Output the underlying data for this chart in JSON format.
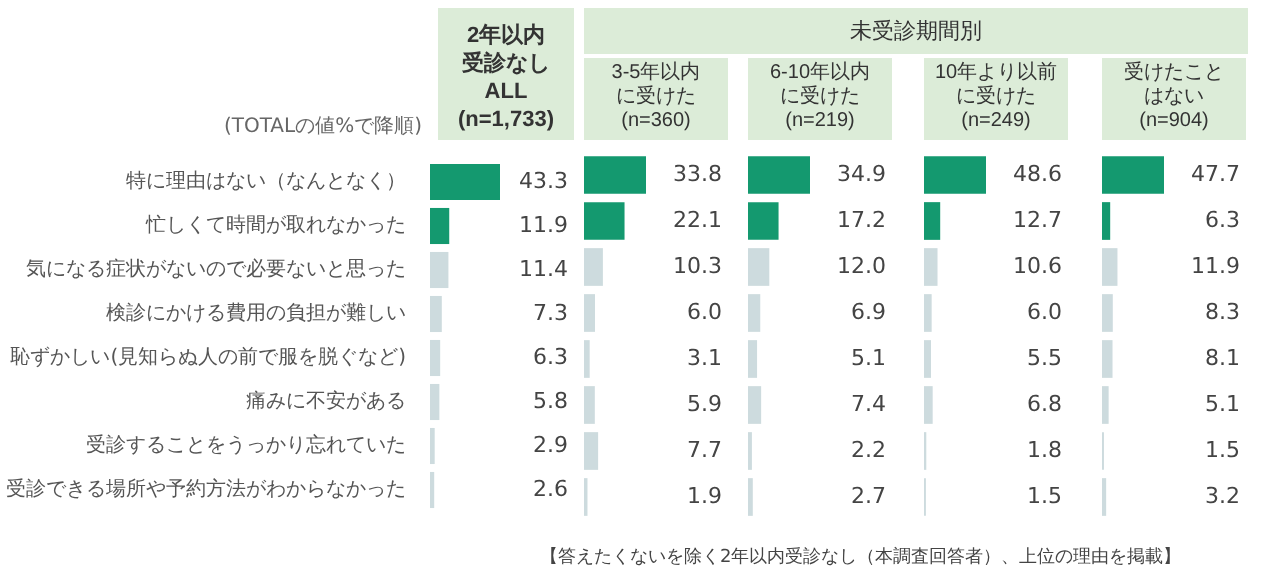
{
  "chart_data": [
    {
      "type": "bar",
      "orientation": "horizontal",
      "title": "2年以内受診なし\nALL\n(n=1,733)",
      "tick_labels": "y",
      "data_labels": true,
      "categories": [
        "特に理由はない（なんとなく）",
        "忙しくて時間が取れなかった",
        "気になる症状がないので必要ないと思った",
        "検診にかける費用の負担が難しい",
        "恥ずかしい(見知らぬ人の前で服を脱ぐなど)",
        "痛みに不安がある",
        "受診することをうっかり忘れていた",
        "受診できる場所や予約方法がわからなかった"
      ],
      "values": [
        43.3,
        11.9,
        11.4,
        7.3,
        6.3,
        5.8,
        2.9,
        2.6
      ],
      "colors": [
        "#14996f",
        "#14996f",
        "#cddbde",
        "#cddbde",
        "#cddbde",
        "#cddbde",
        "#cddbde",
        "#cddbde"
      ],
      "annotations": [
        "(TOTALの値%で降順)",
        "【答えたくないを除く2年以内受診なし（本調査回答者）、上位の理由を掲載】"
      ]
    },
    {
      "type": "bar",
      "orientation": "horizontal",
      "title": "3-5年以内に受けた\n(n=360)",
      "tick_labels": false,
      "categories": [
        null,
        null,
        null,
        null,
        null,
        null,
        null,
        null
      ],
      "values": [
        33.8,
        22.1,
        10.3,
        6.0,
        3.1,
        5.9,
        7.7,
        1.9
      ],
      "value_labels": [
        "33.8",
        "22.1",
        "10.3",
        "6.0",
        "3.1",
        "5.9",
        "7.7",
        "1.9"
      ],
      "colors": [
        "#14996f",
        "#14996f",
        "#cddbde",
        "#cddbde",
        "#cddbde",
        "#cddbde",
        "#cddbde",
        "#cddbde"
      ],
      "annotations": [
        "未受診期間別"
      ]
    },
    {
      "type": "bar",
      "orientation": "horizontal",
      "title": "6-10年以内に受けた\n(n=219)",
      "tick_labels": false,
      "categories": [
        null,
        null,
        null,
        null,
        null,
        null,
        null,
        null
      ],
      "values": [
        34.9,
        17.2,
        12.0,
        6.9,
        5.1,
        7.4,
        2.2,
        2.7
      ],
      "value_labels": [
        "34.9",
        "17.2",
        "12.0",
        "6.9",
        "5.1",
        "7.4",
        "2.2",
        "2.7"
      ],
      "colors": [
        "#14996f",
        "#14996f",
        "#cddbde",
        "#cddbde",
        "#cddbde",
        "#cddbde",
        "#cddbde",
        "#cddbde"
      ]
    },
    {
      "type": "bar",
      "orientation": "horizontal",
      "title": "10年より以前に受けた\n(n=249)",
      "tick_labels": false,
      "categories": [
        null,
        null,
        null,
        null,
        null,
        null,
        null,
        null
      ],
      "values": [
        48.6,
        12.7,
        10.6,
        6.0,
        5.5,
        6.8,
        1.8,
        1.5
      ],
      "value_labels": [
        "48.6",
        "12.7",
        "10.6",
        "6.0",
        "5.5",
        "6.8",
        "1.8",
        "1.5"
      ],
      "colors": [
        "#14996f",
        "#14996f",
        "#cddbde",
        "#cddbde",
        "#cddbde",
        "#cddbde",
        "#cddbde",
        "#cddbde"
      ]
    },
    {
      "type": "bar",
      "orientation": "horizontal",
      "title": "受けたことはない\n(n=904)",
      "tick_labels": false,
      "data_labels": true,
      "categories": [
        null,
        null,
        null,
        null,
        null,
        null,
        null,
        null
      ],
      "values": [
        47.7,
        6.3,
        11.9,
        8.3,
        8.1,
        5.1,
        1.5,
        3.2
      ],
      "colors": [
        "#14996f",
        "#14996f",
        "#cddbde",
        "#cddbde",
        "#cddbde",
        "#cddbde",
        "#cddbde",
        "#cddbde"
      ]
    }
  ]
}
